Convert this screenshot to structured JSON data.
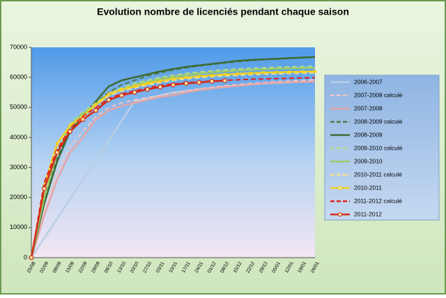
{
  "chart_data": {
    "type": "line",
    "title": "Evolution nombre de licenciés pendant chaque saison",
    "categories": [
      "25/08",
      "01/09",
      "08/09",
      "15/09",
      "22/09",
      "29/09",
      "06/10",
      "13/10",
      "20/10",
      "27/10",
      "03/11",
      "10/11",
      "17/11",
      "24/11",
      "01/12",
      "08/12",
      "15/12",
      "22/12",
      "29/12",
      "05/01",
      "12/01",
      "19/01",
      "26/01"
    ],
    "ylim": [
      0,
      70000
    ],
    "yticks": [
      0,
      10000,
      20000,
      30000,
      40000,
      50000,
      60000,
      70000
    ],
    "grid": false,
    "legend": "right",
    "series": [
      {
        "name": "2006-2007",
        "color": "#b9cde5",
        "dash": false,
        "marker": false,
        "values": [
          0,
          6500,
          13000,
          19500,
          26000,
          32500,
          39000,
          45500,
          52000,
          53000,
          54000,
          55000,
          55500,
          56000,
          56500,
          57000,
          57300,
          57600,
          57900,
          58100,
          58300,
          58500,
          58700
        ]
      },
      {
        "name": "2007-2008 calculé",
        "color": "#f2c4c4",
        "dash": true,
        "marker": false,
        "values": [
          0,
          15000,
          28000,
          37000,
          42000,
          47000,
          50000,
          51500,
          52500,
          53300,
          54000,
          54800,
          55500,
          56200,
          56700,
          57200,
          57600,
          58000,
          58300,
          58600,
          58800,
          59000,
          59200
        ]
      },
      {
        "name": "2007-2008",
        "color": "#e6a5a5",
        "dash": false,
        "marker": false,
        "values": [
          0,
          14000,
          26000,
          35000,
          40000,
          46000,
          49000,
          50500,
          51500,
          52500,
          53500,
          54000,
          55000,
          55800,
          56300,
          56800,
          57200,
          57600,
          58000,
          58200,
          58400,
          58500,
          58600
        ]
      },
      {
        "name": "2008-2009 calculé",
        "color": "#4f7a45",
        "dash": true,
        "marker": false,
        "values": [
          0,
          19000,
          33000,
          43000,
          48000,
          51500,
          55000,
          57500,
          59000,
          60500,
          61500,
          62500,
          63200,
          63800,
          64300,
          64800,
          65200,
          65600,
          65900,
          66100,
          66300,
          66500,
          66700
        ]
      },
      {
        "name": "2008-2009",
        "color": "#3d6b35",
        "dash": false,
        "marker": false,
        "values": [
          0,
          18000,
          32000,
          42000,
          47000,
          52000,
          57000,
          59000,
          60000,
          61000,
          62000,
          62800,
          63500,
          64000,
          64500,
          65000,
          65500,
          65800,
          66000,
          66200,
          66400,
          66600,
          66800
        ]
      },
      {
        "name": "2009-2010 calculé",
        "color": "#b7dd8f",
        "dash": true,
        "marker": false,
        "values": [
          0,
          20500,
          35500,
          44500,
          48500,
          51500,
          54500,
          56500,
          58000,
          59000,
          60000,
          60700,
          61300,
          61800,
          62200,
          62500,
          62800,
          63000,
          63200,
          63400,
          63500,
          63600,
          63700
        ]
      },
      {
        "name": "2009-2010",
        "color": "#9bcc6a",
        "dash": false,
        "marker": false,
        "values": [
          0,
          20000,
          35000,
          44000,
          48000,
          51000,
          54000,
          56000,
          57500,
          58500,
          59500,
          60200,
          60800,
          61300,
          61700,
          62000,
          62300,
          62500,
          62700,
          62900,
          63000,
          63100,
          63200
        ]
      },
      {
        "name": "2010-2011 calculé",
        "color": "#f5e08a",
        "dash": true,
        "marker": false,
        "values": [
          0,
          23500,
          37500,
          43500,
          46500,
          50500,
          54000,
          55500,
          56500,
          57500,
          58300,
          59000,
          59500,
          59900,
          60200,
          60500,
          60700,
          60900,
          61100,
          61200,
          61300,
          61400,
          61500
        ]
      },
      {
        "name": "2010-2011",
        "color": "#f0d020",
        "dash": false,
        "marker": true,
        "values": [
          0,
          24000,
          38000,
          44000,
          47000,
          51000,
          54500,
          56000,
          57000,
          58000,
          58800,
          59500,
          60000,
          60400,
          60700,
          61000,
          61200,
          61400,
          61600,
          61700,
          61800,
          61900,
          62000
        ]
      },
      {
        "name": "2011-2012 calculé",
        "color": "#e02020",
        "dash": true,
        "marker": false,
        "values": [
          0,
          25000,
          36000,
          43000,
          47000,
          50000,
          53000,
          54500,
          55500,
          56500,
          57300,
          57800,
          58200,
          58500,
          58800,
          59000,
          59200,
          59400,
          59500,
          59600,
          59700,
          59800,
          59900
        ]
      },
      {
        "name": "2011-2012",
        "color": "#d42a1a",
        "dash": false,
        "marker": true,
        "values": [
          0,
          23000,
          35000,
          42000,
          46000,
          49000,
          52500,
          54000,
          55000,
          56000,
          56800,
          57500,
          58000,
          58300,
          58700,
          58900,
          null,
          null,
          null,
          null,
          null,
          null,
          null
        ]
      }
    ]
  }
}
